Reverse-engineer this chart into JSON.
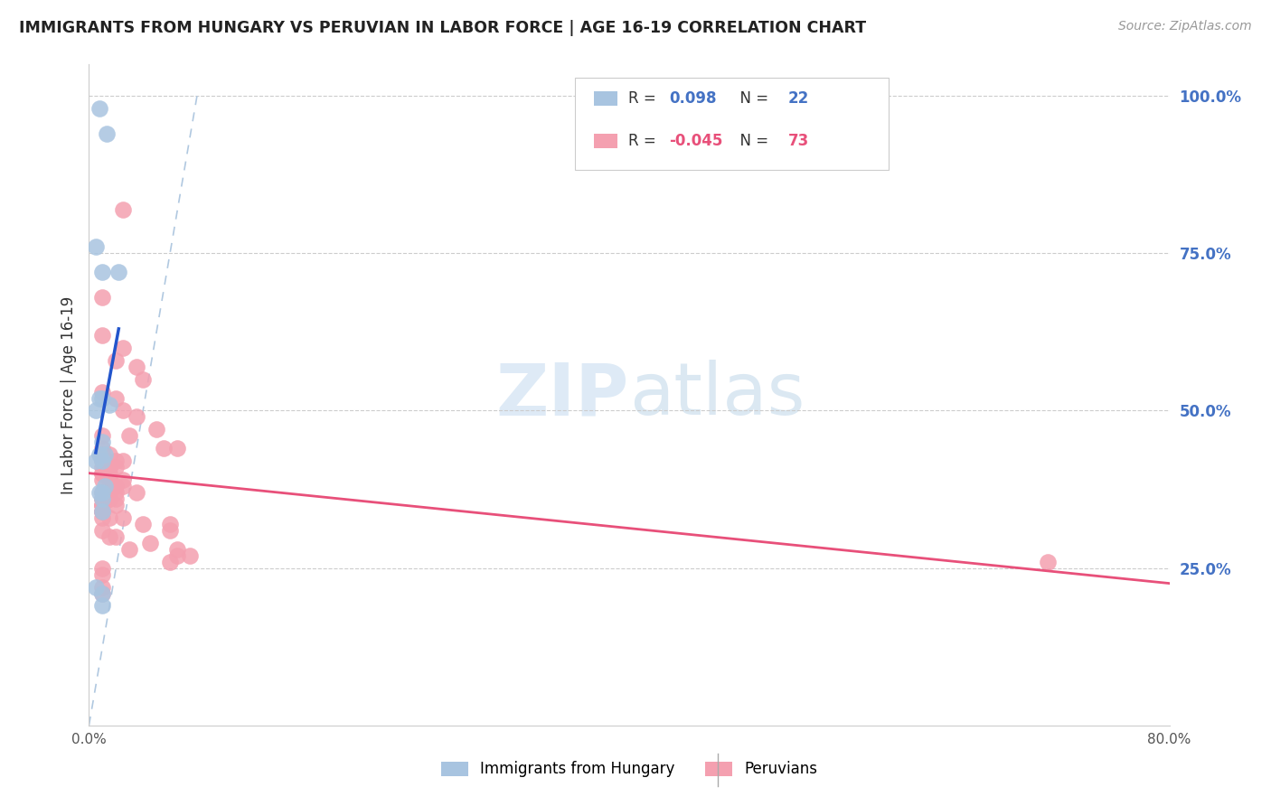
{
  "title": "IMMIGRANTS FROM HUNGARY VS PERUVIAN IN LABOR FORCE | AGE 16-19 CORRELATION CHART",
  "source": "Source: ZipAtlas.com",
  "ylabel": "In Labor Force | Age 16-19",
  "xlim": [
    0.0,
    0.8
  ],
  "ylim": [
    0.0,
    1.05
  ],
  "xtick_positions": [
    0.0,
    0.2,
    0.4,
    0.6,
    0.8
  ],
  "xtick_labels": [
    "0.0%",
    "",
    "",
    "",
    "80.0%"
  ],
  "right_ytick_positions": [
    0.25,
    0.5,
    0.75,
    1.0
  ],
  "right_ytick_labels": [
    "25.0%",
    "50.0%",
    "75.0%",
    "100.0%"
  ],
  "hungary_color": "#a8c4e0",
  "peru_color": "#f4a0b0",
  "hungary_line_color": "#2255cc",
  "peru_line_color": "#e8507a",
  "diagonal_color": "#b0c8e0",
  "hungary_scatter_x": [
    0.008,
    0.013,
    0.005,
    0.01,
    0.022,
    0.01,
    0.008,
    0.015,
    0.005,
    0.01,
    0.008,
    0.012,
    0.005,
    0.01,
    0.012,
    0.008,
    0.01,
    0.01,
    0.01,
    0.005,
    0.01,
    0.01
  ],
  "hungary_scatter_y": [
    0.98,
    0.94,
    0.76,
    0.72,
    0.72,
    0.52,
    0.52,
    0.51,
    0.5,
    0.45,
    0.43,
    0.43,
    0.42,
    0.42,
    0.38,
    0.37,
    0.37,
    0.36,
    0.34,
    0.22,
    0.21,
    0.19
  ],
  "peru_scatter_x": [
    0.025,
    0.01,
    0.01,
    0.025,
    0.02,
    0.035,
    0.04,
    0.01,
    0.02,
    0.025,
    0.035,
    0.05,
    0.01,
    0.03,
    0.055,
    0.01,
    0.065,
    0.01,
    0.01,
    0.01,
    0.01,
    0.015,
    0.02,
    0.025,
    0.01,
    0.015,
    0.02,
    0.01,
    0.015,
    0.01,
    0.01,
    0.015,
    0.01,
    0.025,
    0.015,
    0.015,
    0.02,
    0.025,
    0.02,
    0.035,
    0.01,
    0.015,
    0.01,
    0.01,
    0.015,
    0.02,
    0.02,
    0.01,
    0.01,
    0.01,
    0.01,
    0.01,
    0.01,
    0.01,
    0.015,
    0.025,
    0.04,
    0.06,
    0.01,
    0.06,
    0.015,
    0.02,
    0.045,
    0.03,
    0.065,
    0.065,
    0.075,
    0.06,
    0.71,
    0.01,
    0.01,
    0.01,
    0.01
  ],
  "peru_scatter_y": [
    0.82,
    0.68,
    0.62,
    0.6,
    0.58,
    0.57,
    0.55,
    0.53,
    0.52,
    0.5,
    0.49,
    0.47,
    0.46,
    0.46,
    0.44,
    0.44,
    0.44,
    0.43,
    0.43,
    0.43,
    0.43,
    0.43,
    0.42,
    0.42,
    0.42,
    0.41,
    0.41,
    0.41,
    0.41,
    0.4,
    0.4,
    0.4,
    0.39,
    0.39,
    0.39,
    0.38,
    0.38,
    0.38,
    0.37,
    0.37,
    0.37,
    0.36,
    0.36,
    0.36,
    0.36,
    0.36,
    0.35,
    0.35,
    0.35,
    0.35,
    0.34,
    0.34,
    0.34,
    0.33,
    0.33,
    0.33,
    0.32,
    0.32,
    0.31,
    0.31,
    0.3,
    0.3,
    0.29,
    0.28,
    0.28,
    0.27,
    0.27,
    0.26,
    0.26,
    0.25,
    0.24,
    0.22,
    0.21
  ],
  "legend_hungary_R": "0.098",
  "legend_hungary_N": "22",
  "legend_peru_R": "-0.045",
  "legend_peru_N": "73",
  "legend_R_color_hungary": "#4472c4",
  "legend_R_color_peru": "#e8507a",
  "legend_N_color": "#4472c4",
  "watermark_ZIP": "ZIP",
  "watermark_atlas": "atlas",
  "watermark_color_ZIP": "#c8ddf0",
  "watermark_color_atlas": "#b0cce4"
}
